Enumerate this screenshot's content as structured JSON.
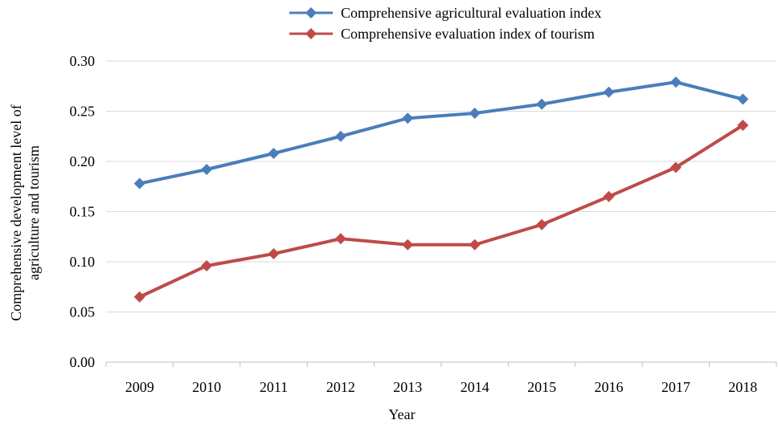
{
  "chart_data": {
    "type": "line",
    "title": "",
    "xlabel": "Year",
    "ylabel": "Comprehensive development level of agriculture and tourism",
    "ylabel_lines": [
      "Comprehensive development level of",
      "agriculture and tourism"
    ],
    "categories": [
      "2009",
      "2010",
      "2011",
      "2012",
      "2013",
      "2014",
      "2015",
      "2016",
      "2017",
      "2018"
    ],
    "ylim": [
      0,
      0.3
    ],
    "yticks": [
      "0.00",
      "0.05",
      "0.10",
      "0.15",
      "0.20",
      "0.25",
      "0.30"
    ],
    "grid": "horizontal",
    "legend_position": "top-right",
    "series": [
      {
        "name": "Comprehensive agricultural evaluation index",
        "color": "#4a7ebb",
        "marker": "diamond",
        "values": [
          0.178,
          0.192,
          0.208,
          0.225,
          0.243,
          0.248,
          0.257,
          0.269,
          0.279,
          0.262
        ]
      },
      {
        "name": "Comprehensive evaluation index of tourism",
        "color": "#be4b48",
        "marker": "diamond",
        "values": [
          0.065,
          0.096,
          0.108,
          0.123,
          0.117,
          0.117,
          0.137,
          0.165,
          0.194,
          0.236
        ]
      }
    ]
  }
}
